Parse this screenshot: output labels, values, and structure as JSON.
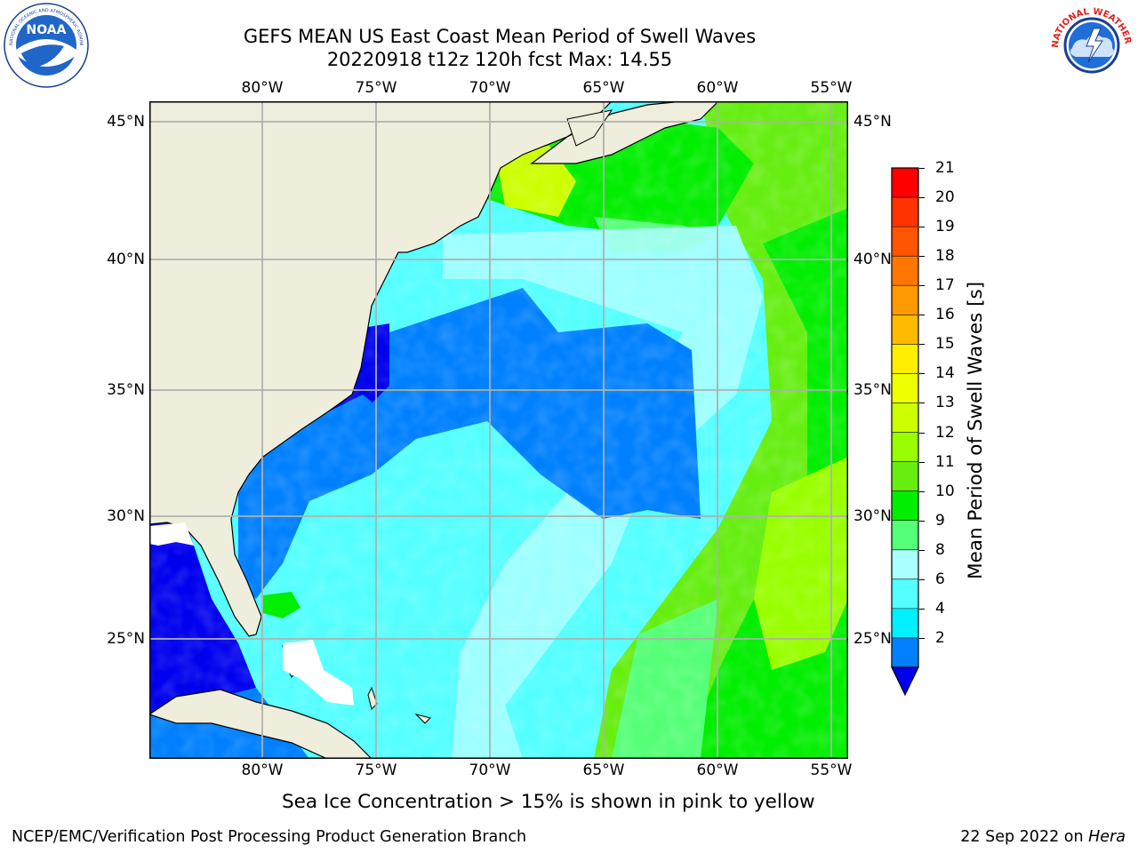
{
  "header": {
    "title_line1": "GEFS MEAN US East Coast Mean Period of Swell Waves",
    "title_line2": "20220918 t12z 120h fcst   Max: 14.55"
  },
  "logos": {
    "left": {
      "icon": "noaa-logo",
      "text": "NOAA",
      "ring_text": "NATIONAL OCEANIC AND ATMOSPHERIC ADMINISTRATION · U.S. DEPARTMENT OF COMMERCE"
    },
    "right": {
      "icon": "nws-logo",
      "ring_text": "NATIONAL WEATHER SERVICE"
    }
  },
  "map": {
    "lon_labels": [
      "80°W",
      "75°W",
      "70°W",
      "65°W",
      "60°W",
      "55°W"
    ],
    "lat_labels": [
      "45°N",
      "40°N",
      "35°N",
      "30°N",
      "25°N"
    ],
    "land_color": "#efeedc",
    "grid_color": "#b0b0b0"
  },
  "colorbar": {
    "title": "Mean Period of Swell Waves [s]",
    "ticks": [
      "21",
      "20",
      "19",
      "18",
      "17",
      "16",
      "15",
      "14",
      "13",
      "12",
      "11",
      "10",
      "9",
      "8",
      "6",
      "4",
      "2"
    ],
    "colors": [
      "#ff0000",
      "#ff3300",
      "#ff5500",
      "#ff7700",
      "#ff9900",
      "#ffbb00",
      "#ffee00",
      "#eeff00",
      "#ccff00",
      "#99ff00",
      "#66ee11",
      "#00ee00",
      "#55ff77",
      "#aaffff",
      "#55ffff",
      "#00f0ff",
      "#0080ff"
    ],
    "under_color": "#0000ee"
  },
  "note": "Sea Ice Concentration > 15% is shown in pink to yellow",
  "footer": {
    "left": "NCEP/EMC/Verification Post Processing Product Generation Branch",
    "date": "22 Sep 2022 on ",
    "machine": "Hera"
  }
}
